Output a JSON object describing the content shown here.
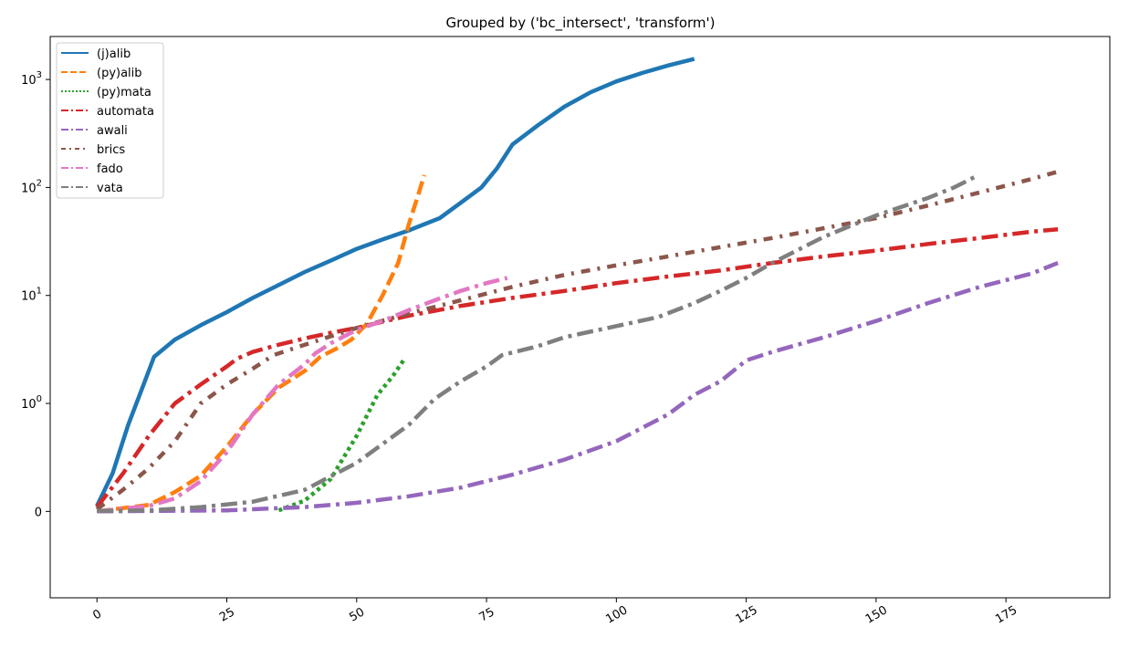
{
  "chart_data": {
    "type": "line",
    "title": "Grouped by ('bc_intersect', 'transform')",
    "xlabel": "",
    "ylabel": "",
    "xlim": [
      -9,
      195
    ],
    "ylim": [
      -0.8,
      2500
    ],
    "yscale": "symlog",
    "symlog_linthresh": 1,
    "grid": false,
    "legend_position": "upper-left",
    "xticks": [
      0,
      25,
      50,
      75,
      100,
      125,
      150,
      175
    ],
    "xtick_labels": [
      "0",
      "25",
      "50",
      "75",
      "100",
      "125",
      "150",
      "175"
    ],
    "yticks": [
      0,
      1,
      10,
      100,
      1000
    ],
    "ytick_labels": [
      {
        "base": "0",
        "exp": ""
      },
      {
        "base": "10",
        "exp": "0"
      },
      {
        "base": "10",
        "exp": "1"
      },
      {
        "base": "10",
        "exp": "2"
      },
      {
        "base": "10",
        "exp": "3"
      }
    ],
    "series": [
      {
        "name": "(j)alib",
        "color": "#1f77b4",
        "dash": "solid",
        "points": [
          [
            0,
            0.05
          ],
          [
            3,
            0.35
          ],
          [
            6,
            0.8
          ],
          [
            9,
            1.5
          ],
          [
            11,
            2.7
          ],
          [
            15,
            3.9
          ],
          [
            20,
            5.3
          ],
          [
            25,
            7
          ],
          [
            30,
            9.5
          ],
          [
            35,
            12.5
          ],
          [
            40,
            16.5
          ],
          [
            45,
            21
          ],
          [
            50,
            27
          ],
          [
            55,
            33
          ],
          [
            60,
            40
          ],
          [
            66,
            52
          ],
          [
            70,
            72
          ],
          [
            74,
            100
          ],
          [
            77,
            150
          ],
          [
            80,
            250
          ],
          [
            85,
            380
          ],
          [
            90,
            560
          ],
          [
            95,
            760
          ],
          [
            100,
            960
          ],
          [
            105,
            1150
          ],
          [
            110,
            1350
          ],
          [
            115,
            1550
          ]
        ]
      },
      {
        "name": "(py)alib",
        "color": "#ff7f0e",
        "dash": "dashed",
        "points": [
          [
            0,
            0
          ],
          [
            10,
            0.06
          ],
          [
            15,
            0.18
          ],
          [
            20,
            0.33
          ],
          [
            25,
            0.6
          ],
          [
            30,
            0.9
          ],
          [
            35,
            1.4
          ],
          [
            40,
            2
          ],
          [
            43,
            2.7
          ],
          [
            46,
            3.2
          ],
          [
            49,
            3.9
          ],
          [
            52,
            5.5
          ],
          [
            55,
            10
          ],
          [
            58,
            20
          ],
          [
            60,
            45
          ],
          [
            62,
            90
          ],
          [
            63,
            130
          ]
        ]
      },
      {
        "name": "(py)mata",
        "color": "#2ca02c",
        "dash": "dotted",
        "points": [
          [
            35,
            0.01
          ],
          [
            40,
            0.1
          ],
          [
            45,
            0.3
          ],
          [
            50,
            0.7
          ],
          [
            54,
            1.2
          ],
          [
            57,
            1.8
          ],
          [
            59,
            2.5
          ]
        ]
      },
      {
        "name": "automata",
        "color": "#d62728",
        "dash": "dashdot",
        "points": [
          [
            0,
            0.04
          ],
          [
            5,
            0.35
          ],
          [
            10,
            0.7
          ],
          [
            15,
            1.0
          ],
          [
            20,
            1.5
          ],
          [
            25,
            2.2
          ],
          [
            27,
            2.6
          ],
          [
            30,
            3
          ],
          [
            35,
            3.5
          ],
          [
            40,
            4
          ],
          [
            45,
            4.5
          ],
          [
            50,
            5
          ],
          [
            60,
            6.5
          ],
          [
            70,
            8
          ],
          [
            80,
            9.5
          ],
          [
            90,
            11
          ],
          [
            100,
            13
          ],
          [
            110,
            15
          ],
          [
            120,
            17
          ],
          [
            130,
            20
          ],
          [
            140,
            23
          ],
          [
            150,
            26
          ],
          [
            160,
            30
          ],
          [
            170,
            34
          ],
          [
            180,
            39
          ],
          [
            185,
            41
          ]
        ]
      },
      {
        "name": "awali",
        "color": "#9467bd",
        "dash": "dashdot",
        "points": [
          [
            0,
            0
          ],
          [
            25,
            0.01
          ],
          [
            40,
            0.04
          ],
          [
            50,
            0.08
          ],
          [
            60,
            0.14
          ],
          [
            70,
            0.22
          ],
          [
            80,
            0.34
          ],
          [
            90,
            0.48
          ],
          [
            100,
            0.65
          ],
          [
            110,
            0.9
          ],
          [
            115,
            1.2
          ],
          [
            120,
            1.6
          ],
          [
            125,
            2.5
          ],
          [
            130,
            3
          ],
          [
            140,
            4.1
          ],
          [
            150,
            5.8
          ],
          [
            160,
            8.5
          ],
          [
            170,
            12
          ],
          [
            180,
            16
          ],
          [
            185,
            20
          ]
        ]
      },
      {
        "name": "brics",
        "color": "#8c564b",
        "dash": "loose-dashdot",
        "points": [
          [
            0,
            0.02
          ],
          [
            5,
            0.2
          ],
          [
            10,
            0.4
          ],
          [
            15,
            0.65
          ],
          [
            20,
            1
          ],
          [
            25,
            1.5
          ],
          [
            30,
            2.1
          ],
          [
            34,
            2.8
          ],
          [
            40,
            3.5
          ],
          [
            50,
            5
          ],
          [
            60,
            6.8
          ],
          [
            70,
            9
          ],
          [
            80,
            12
          ],
          [
            90,
            15.5
          ],
          [
            100,
            19
          ],
          [
            110,
            23
          ],
          [
            120,
            28
          ],
          [
            130,
            34
          ],
          [
            140,
            42
          ],
          [
            150,
            52
          ],
          [
            160,
            68
          ],
          [
            170,
            90
          ],
          [
            180,
            120
          ],
          [
            185,
            140
          ]
        ]
      },
      {
        "name": "fado",
        "color": "#e377c2",
        "dash": "dashdot",
        "points": [
          [
            0,
            0
          ],
          [
            10,
            0.05
          ],
          [
            15,
            0.12
          ],
          [
            20,
            0.28
          ],
          [
            25,
            0.55
          ],
          [
            30,
            0.9
          ],
          [
            35,
            1.5
          ],
          [
            40,
            2.3
          ],
          [
            42,
            2.9
          ],
          [
            45,
            3.6
          ],
          [
            50,
            4.8
          ],
          [
            55,
            5.8
          ],
          [
            60,
            7.3
          ],
          [
            65,
            9
          ],
          [
            70,
            11
          ],
          [
            75,
            13
          ],
          [
            79,
            14.5
          ]
        ]
      },
      {
        "name": "vata",
        "color": "#7f7f7f",
        "dash": "dashdot",
        "points": [
          [
            0,
            0.005
          ],
          [
            10,
            0.01
          ],
          [
            20,
            0.04
          ],
          [
            30,
            0.09
          ],
          [
            40,
            0.2
          ],
          [
            50,
            0.45
          ],
          [
            60,
            0.8
          ],
          [
            65,
            1.1
          ],
          [
            70,
            1.6
          ],
          [
            75,
            2.2
          ],
          [
            78,
            2.8
          ],
          [
            85,
            3.4
          ],
          [
            90,
            4.1
          ],
          [
            100,
            5.2
          ],
          [
            108,
            6.3
          ],
          [
            115,
            8.5
          ],
          [
            120,
            11
          ],
          [
            125,
            14.5
          ],
          [
            130,
            20
          ],
          [
            140,
            35
          ],
          [
            150,
            55
          ],
          [
            160,
            80
          ],
          [
            165,
            100
          ],
          [
            169,
            125
          ]
        ]
      }
    ]
  }
}
